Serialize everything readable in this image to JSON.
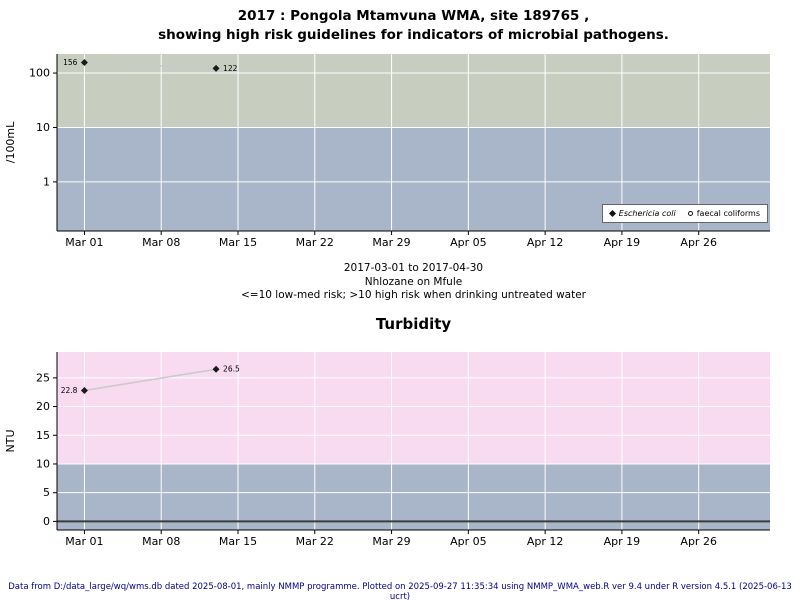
{
  "header": {
    "title_line1": "2017 : Pongola Mtamvuna WMA, site 189765 ,",
    "title_line2": "showing high risk guidelines for indicators of microbial pathogens."
  },
  "footer": {
    "text": "Data from D:/data_large/wq/wms.db dated 2025-08-01, mainly NMMP programme. Plotted on 2025-09-27 11:35:34 using NMMP_WMA_web.R ver 9.4 under R version 4.5.1 (2025-06-13 ucrt)",
    "color": "#00008B"
  },
  "chart_data": [
    {
      "type": "scatter",
      "name": "microbial-pathogens",
      "title": "",
      "ylabel": "/100mL",
      "y_scale": "log",
      "ylim": [
        0.125,
        224
      ],
      "y_ticks": [
        1,
        10,
        100
      ],
      "x_ticks": [
        "Mar 01",
        "Mar 08",
        "Mar 15",
        "Mar 22",
        "Mar 29",
        "Apr 05",
        "Apr 12",
        "Apr 19",
        "Apr 26"
      ],
      "x_tick_days": [
        0,
        7,
        14,
        21,
        28,
        35,
        42,
        49,
        56
      ],
      "xlim_days": [
        -2.5,
        62.5
      ],
      "grid": true,
      "threshold": 10,
      "legend_position": "bottomright",
      "colors": {
        "band_above": "#c7cec0",
        "band_below": "#a9b5c8",
        "grid": "#ffffff",
        "line": "#c9c9c9",
        "marker": "#1a1a1a"
      },
      "series": [
        {
          "name": "Eschericia coli",
          "marker": "diamond",
          "italic": true,
          "x_days": [
            0,
            12
          ],
          "values": [
            156,
            122
          ],
          "labels": [
            "156",
            "122"
          ],
          "label_sides": [
            "left",
            "right"
          ]
        },
        {
          "name": "faecal coliforms",
          "marker": "open-circle",
          "italic": false,
          "x_days": [],
          "values": [],
          "labels": [],
          "label_sides": []
        }
      ],
      "captions": [
        "2017-03-01 to 2017-04-30",
        "Nhlozane on Mfule",
        "<=10 low-med risk; >10 high risk when drinking untreated water"
      ]
    },
    {
      "type": "scatter",
      "name": "turbidity",
      "title": "Turbidity",
      "ylabel": "NTU",
      "y_scale": "linear",
      "ylim": [
        -1.5,
        29.5
      ],
      "y_ticks": [
        0,
        5,
        10,
        15,
        20,
        25
      ],
      "x_ticks": [
        "Mar 01",
        "Mar 08",
        "Mar 15",
        "Mar 22",
        "Mar 29",
        "Apr 05",
        "Apr 12",
        "Apr 19",
        "Apr 26"
      ],
      "x_tick_days": [
        0,
        7,
        14,
        21,
        28,
        35,
        42,
        49,
        56
      ],
      "xlim_days": [
        -2.5,
        62.5
      ],
      "grid": true,
      "threshold": 10,
      "zero_line": 0,
      "colors": {
        "band_above": "#f8dbf1",
        "band_below": "#a9b5c8",
        "grid": "#ffffff",
        "line": "#c9c9c9",
        "marker": "#1a1a1a"
      },
      "series": [
        {
          "name": "Turbidity",
          "marker": "diamond",
          "italic": false,
          "x_days": [
            0,
            12
          ],
          "values": [
            22.8,
            26.5
          ],
          "labels": [
            "22.8",
            "26.5"
          ],
          "label_sides": [
            "left",
            "right"
          ]
        }
      ]
    }
  ]
}
